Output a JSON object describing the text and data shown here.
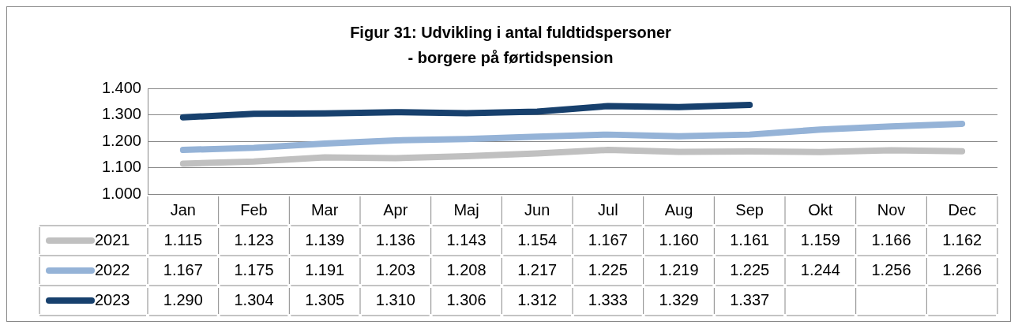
{
  "chart_data": {
    "type": "line",
    "title": "Figur 31: Udvikling i antal fuldtidspersoner",
    "subtitle": "- borgere på førtidspension",
    "categories": [
      "Jan",
      "Feb",
      "Mar",
      "Apr",
      "Maj",
      "Jun",
      "Jul",
      "Aug",
      "Sep",
      "Okt",
      "Nov",
      "Dec"
    ],
    "series": [
      {
        "name": "2021",
        "color": "#c0c0c0",
        "values": [
          1115,
          1123,
          1139,
          1136,
          1143,
          1154,
          1167,
          1160,
          1161,
          1159,
          1166,
          1162
        ],
        "value_labels": [
          "1.115",
          "1.123",
          "1.139",
          "1.136",
          "1.143",
          "1.154",
          "1.167",
          "1.160",
          "1.161",
          "1.159",
          "1.166",
          "1.162"
        ]
      },
      {
        "name": "2022",
        "color": "#95b3d7",
        "values": [
          1167,
          1175,
          1191,
          1203,
          1208,
          1217,
          1225,
          1219,
          1225,
          1244,
          1256,
          1266
        ],
        "value_labels": [
          "1.167",
          "1.175",
          "1.191",
          "1.203",
          "1.208",
          "1.217",
          "1.225",
          "1.219",
          "1.225",
          "1.244",
          "1.256",
          "1.266"
        ]
      },
      {
        "name": "2023",
        "color": "#17406d",
        "values": [
          1290,
          1304,
          1305,
          1310,
          1306,
          1312,
          1333,
          1329,
          1337,
          null,
          null,
          null
        ],
        "value_labels": [
          "1.290",
          "1.304",
          "1.305",
          "1.310",
          "1.306",
          "1.312",
          "1.333",
          "1.329",
          "1.337",
          null,
          null,
          null
        ]
      }
    ],
    "ylim": [
      1000,
      1400
    ],
    "yticks": [
      {
        "value": 1000,
        "label": "1.000"
      },
      {
        "value": 1100,
        "label": "1.100"
      },
      {
        "value": 1200,
        "label": "1.200"
      },
      {
        "value": 1300,
        "label": "1.300"
      },
      {
        "value": 1400,
        "label": "1.400"
      }
    ],
    "grid": "y",
    "legend": "bottom",
    "marker": "none",
    "line_style": "solid"
  }
}
